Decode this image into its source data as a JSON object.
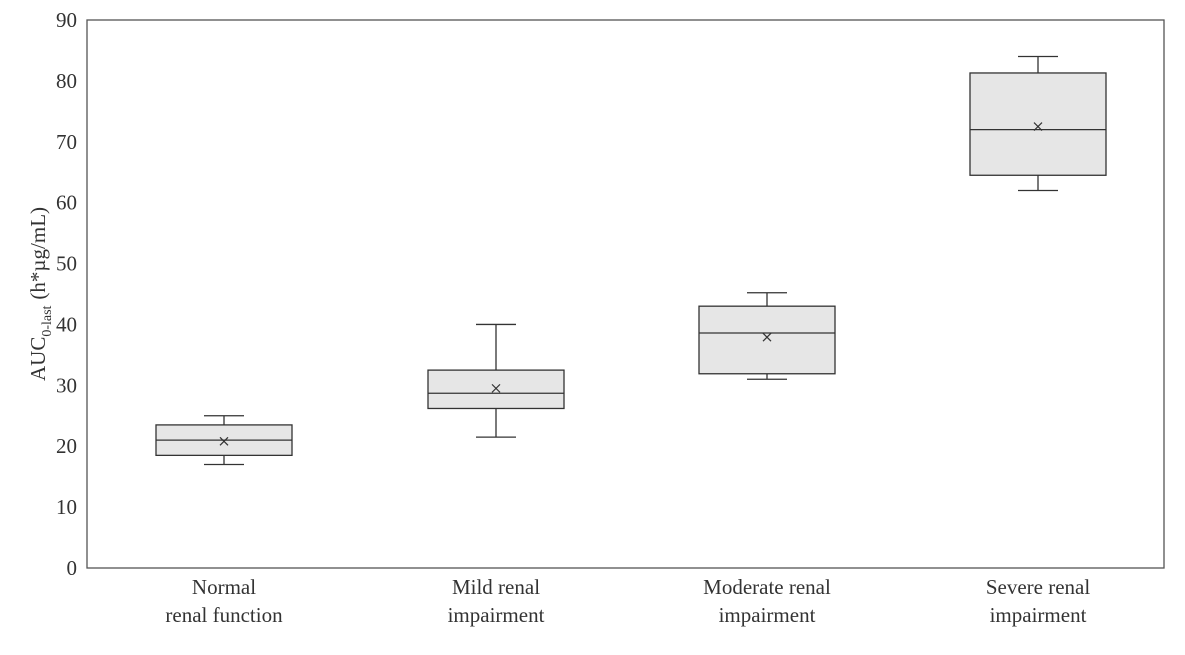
{
  "chart_data": {
    "type": "boxplot",
    "ylabel": {
      "main": "AUC",
      "subscript": "0-last",
      "unit": "(h*µg/mL)"
    },
    "ylim": [
      0,
      90
    ],
    "yticks": [
      0,
      10,
      20,
      30,
      40,
      50,
      60,
      70,
      80,
      90
    ],
    "grid": false,
    "categories": [
      [
        "Normal",
        "renal function"
      ],
      [
        "Mild renal",
        "impairment"
      ],
      [
        "Moderate renal",
        "impairment"
      ],
      [
        "Severe renal",
        "impairment"
      ]
    ],
    "boxes": [
      {
        "min": 17,
        "q1": 18.5,
        "median": 21,
        "q3": 23.5,
        "max": 25,
        "mean": 20.8
      },
      {
        "min": 21.5,
        "q1": 26.2,
        "median": 28.7,
        "q3": 32.5,
        "max": 40,
        "mean": 29.5
      },
      {
        "min": 31,
        "q1": 31.9,
        "median": 38.6,
        "q3": 43,
        "max": 45.2,
        "mean": 37.9
      },
      {
        "min": 62,
        "q1": 64.5,
        "median": 72,
        "q3": 81.3,
        "max": 84,
        "mean": 72.5
      }
    ],
    "box_fill": "#e6e6e6",
    "line_color": "#333333"
  }
}
